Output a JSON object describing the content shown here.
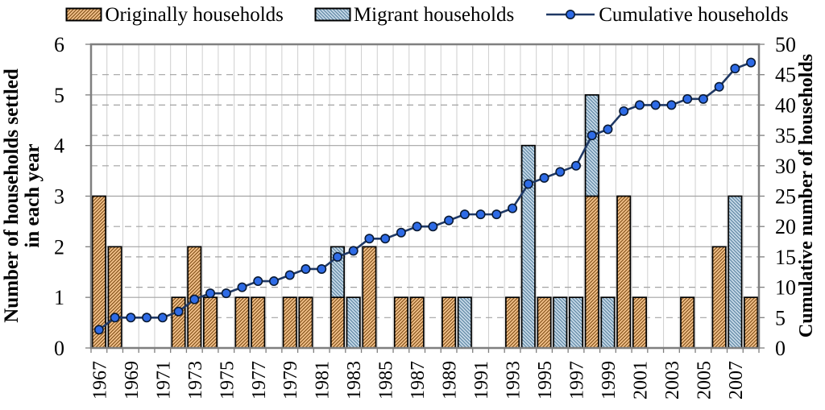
{
  "legend": [
    {
      "label": "Originally households",
      "type": "bar",
      "series_key": "originally"
    },
    {
      "label": "Migrant households",
      "type": "bar",
      "series_key": "migrant"
    },
    {
      "label": "Cumulative households",
      "type": "line",
      "series_key": "cumulative"
    }
  ],
  "left_axis": {
    "title_line1": "Number of households settled",
    "title_line2": "in each year",
    "min": 0,
    "max": 6,
    "ticks": [
      "0",
      "1",
      "2",
      "3",
      "4",
      "5",
      "6"
    ]
  },
  "right_axis": {
    "title": "Cumulative number of households",
    "min": 0,
    "max": 50,
    "ticks": [
      "0",
      "5",
      "10",
      "15",
      "20",
      "25",
      "30",
      "35",
      "40",
      "45",
      "50"
    ]
  },
  "chart_data": {
    "type": "bar",
    "subtype": "stacked-bars-with-cumulative-line",
    "x": [
      1967,
      1968,
      1969,
      1970,
      1971,
      1972,
      1973,
      1974,
      1975,
      1976,
      1977,
      1978,
      1979,
      1980,
      1981,
      1982,
      1983,
      1984,
      1985,
      1986,
      1987,
      1988,
      1989,
      1990,
      1991,
      1992,
      1993,
      1994,
      1995,
      1996,
      1997,
      1998,
      1999,
      2000,
      2001,
      2002,
      2003,
      2004,
      2005,
      2006,
      2007,
      2008
    ],
    "x_tick_labels": [
      "1967",
      "1969",
      "1971",
      "1973",
      "1975",
      "1977",
      "1979",
      "1981",
      "1983",
      "1985",
      "1987",
      "1989",
      "1991",
      "1993",
      "1995",
      "1997",
      "1999",
      "2001",
      "2003",
      "2005",
      "2007"
    ],
    "series": [
      {
        "name": "Originally households",
        "type": "bar",
        "stacked": true,
        "axis": "left",
        "values": [
          3,
          2,
          0,
          0,
          0,
          1,
          2,
          1,
          0,
          1,
          1,
          0,
          1,
          1,
          0,
          1,
          0,
          2,
          0,
          1,
          1,
          0,
          1,
          0,
          0,
          0,
          1,
          0,
          1,
          0,
          0,
          3,
          0,
          3,
          1,
          0,
          0,
          1,
          0,
          2,
          0,
          1
        ]
      },
      {
        "name": "Migrant households",
        "type": "bar",
        "stacked": true,
        "axis": "left",
        "values": [
          0,
          0,
          0,
          0,
          0,
          0,
          0,
          0,
          0,
          0,
          0,
          0,
          0,
          0,
          0,
          1,
          1,
          0,
          0,
          0,
          0,
          0,
          0,
          1,
          0,
          0,
          0,
          4,
          0,
          1,
          1,
          2,
          1,
          0,
          0,
          0,
          0,
          0,
          0,
          0,
          3,
          0
        ]
      },
      {
        "name": "Cumulative households",
        "type": "line",
        "axis": "right",
        "values": [
          3,
          5,
          5,
          5,
          5,
          6,
          8,
          9,
          9,
          10,
          11,
          11,
          12,
          13,
          13,
          15,
          16,
          18,
          18,
          19,
          20,
          20,
          21,
          22,
          22,
          22,
          23,
          27,
          28,
          29,
          30,
          35,
          36,
          39,
          40,
          40,
          40,
          41,
          41,
          43,
          46,
          47
        ]
      }
    ],
    "left_ylim": [
      0,
      6
    ],
    "right_ylim": [
      0,
      50
    ],
    "grid": {
      "vertical": true,
      "horizontal_solid_left_units": [
        1,
        2,
        3,
        4,
        5
      ],
      "horizontal_dashed_right_units": [
        5,
        10,
        15,
        20,
        30,
        35,
        40,
        45
      ]
    },
    "legend_position": "top"
  },
  "colors": {
    "originally_fill": "#F5C48E",
    "originally_hatch": "#7C4A12",
    "migrant_fill": "#C9DBE9",
    "migrant_hatch": "#56809E",
    "bar_border": "#000000",
    "line": "#1F3864",
    "marker_fill": "#2E6BE6",
    "marker_border": "#0A1A33",
    "grid_vertical": "#CFCFCF",
    "grid_horizontal": "#A3A3A3",
    "frame": "#7F7F7F",
    "tick": "#7F7F7F",
    "background": "#FFFFFF",
    "text": "#000000"
  }
}
